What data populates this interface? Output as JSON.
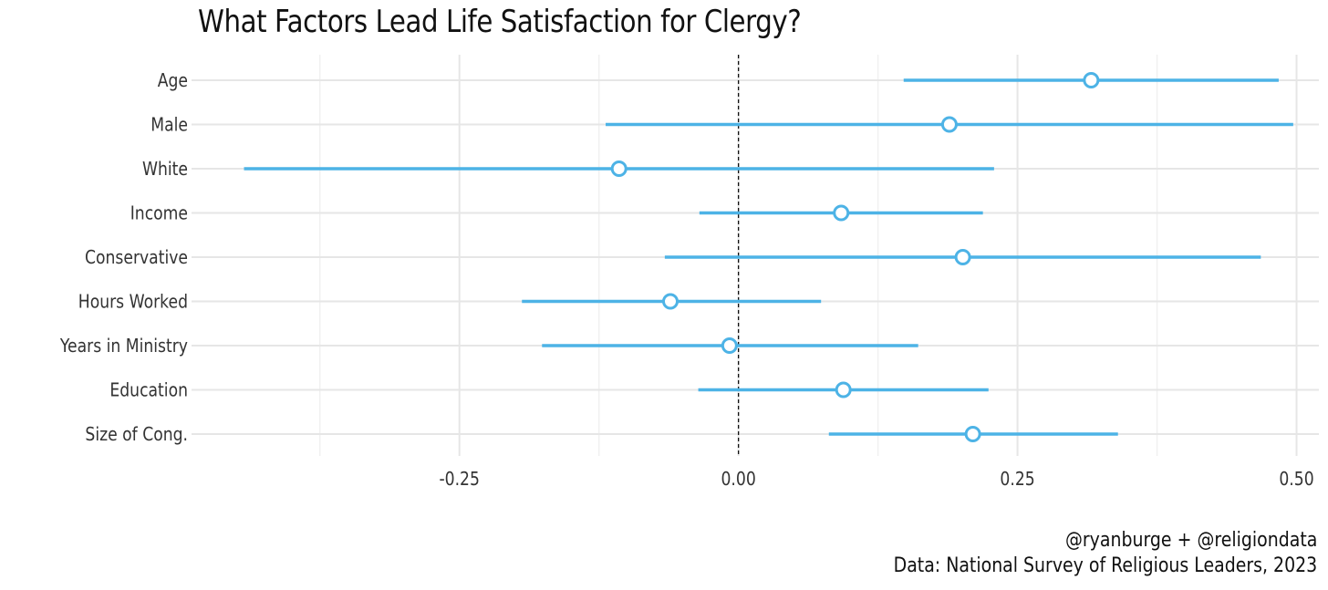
{
  "chart_data": {
    "type": "scatter",
    "subtype": "coefficient-plot",
    "title": "What Factors Lead Life Satisfaction for Clergy?",
    "xlabel": "",
    "ylabel": "",
    "xlim": [
      -0.49,
      0.52
    ],
    "x_ticks": [
      -0.25,
      0.0,
      0.25,
      0.5
    ],
    "x_tick_labels": [
      "-0.25",
      "0.00",
      "0.25",
      "0.50"
    ],
    "reference_line": 0,
    "grid": true,
    "color": "#4db3e6",
    "categories": [
      "Age",
      "Male",
      "White",
      "Income",
      "Conservative",
      "Hours Worked",
      "Years in Ministry",
      "Education",
      "Size of Cong."
    ],
    "estimates": [
      0.316,
      0.189,
      -0.107,
      0.092,
      0.201,
      -0.061,
      -0.008,
      0.094,
      0.21
    ],
    "lower": [
      0.148,
      -0.119,
      -0.443,
      -0.035,
      -0.066,
      -0.194,
      -0.176,
      -0.036,
      0.081
    ],
    "upper": [
      0.484,
      0.497,
      0.229,
      0.219,
      0.468,
      0.074,
      0.161,
      0.224,
      0.34
    ]
  },
  "captions": {
    "line1": "@ryanburge + @religiondata",
    "line2": "Data: National Survey of Religious Leaders, 2023"
  }
}
